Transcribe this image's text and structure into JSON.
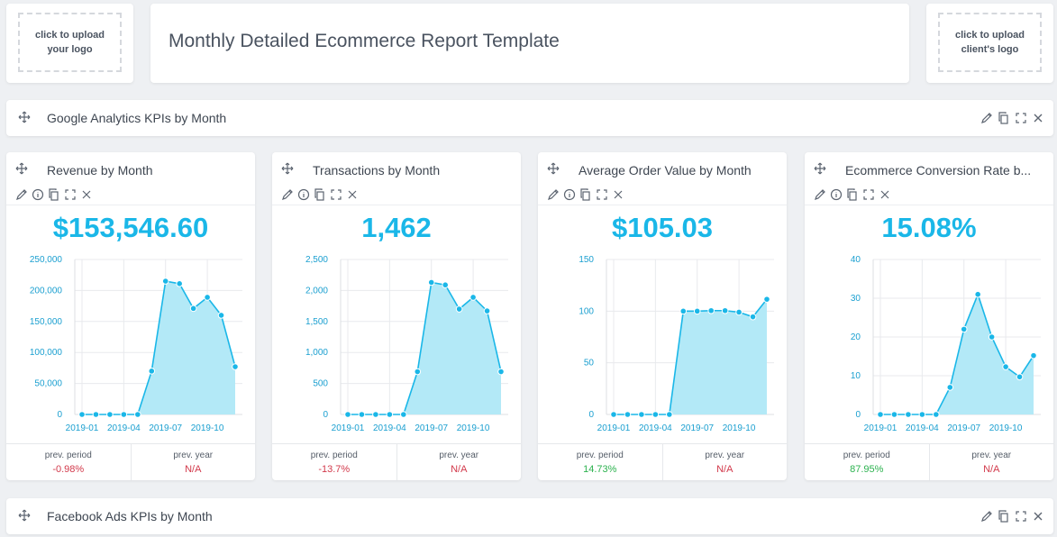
{
  "header": {
    "left_logo": "click to upload your logo",
    "title": "Monthly Detailed Ecommerce Report Template",
    "right_logo": "click to upload client's logo"
  },
  "sections": {
    "ga": {
      "title": "Google Analytics KPIs by Month"
    },
    "fb": {
      "title": "Facebook Ads KPIs by Month"
    }
  },
  "widgets": [
    {
      "title": "Revenue by Month",
      "value": "$153,546.60",
      "prev_period_label": "prev. period",
      "prev_period_value": "-0.98%",
      "prev_year_label": "prev. year",
      "prev_year_value": "N/A"
    },
    {
      "title": "Transactions by Month",
      "value": "1,462",
      "prev_period_label": "prev. period",
      "prev_period_value": "-13.7%",
      "prev_year_label": "prev. year",
      "prev_year_value": "N/A"
    },
    {
      "title": "Average Order Value by Month",
      "value": "$105.03",
      "prev_period_label": "prev. period",
      "prev_period_value": "14.73%",
      "prev_year_label": "prev. year",
      "prev_year_value": "N/A"
    },
    {
      "title": "Ecommerce Conversion Rate b...",
      "value": "15.08%",
      "prev_period_label": "prev. period",
      "prev_period_value": "87.95%",
      "prev_year_label": "prev. year",
      "prev_year_value": "N/A"
    }
  ],
  "colors": {
    "accent": "#1ab7e8",
    "area": "#b3e9f7",
    "negative": "#d2394b",
    "positive": "#2cb24f"
  },
  "chart_data": [
    {
      "type": "area",
      "x": [
        "2019-01",
        "2019-02",
        "2019-03",
        "2019-04",
        "2019-05",
        "2019-06",
        "2019-07",
        "2019-08",
        "2019-09",
        "2019-10",
        "2019-11",
        "2019-12"
      ],
      "x_ticks": [
        "2019-01",
        "2019-04",
        "2019-07",
        "2019-10"
      ],
      "values": [
        0,
        0,
        0,
        0,
        0,
        70000,
        215000,
        211000,
        171000,
        189000,
        160000,
        77000
      ],
      "y_ticks": [
        "0",
        "50,000",
        "100,000",
        "150,000",
        "200,000",
        "250,000"
      ],
      "ylim": [
        0,
        250000
      ]
    },
    {
      "type": "area",
      "x": [
        "2019-01",
        "2019-02",
        "2019-03",
        "2019-04",
        "2019-05",
        "2019-06",
        "2019-07",
        "2019-08",
        "2019-09",
        "2019-10",
        "2019-11",
        "2019-12"
      ],
      "x_ticks": [
        "2019-01",
        "2019-04",
        "2019-07",
        "2019-10"
      ],
      "values": [
        0,
        0,
        0,
        0,
        0,
        690,
        2130,
        2090,
        1700,
        1890,
        1670,
        690
      ],
      "y_ticks": [
        "0",
        "500",
        "1,000",
        "1,500",
        "2,000",
        "2,500"
      ],
      "ylim": [
        0,
        2500
      ]
    },
    {
      "type": "area",
      "x": [
        "2019-01",
        "2019-02",
        "2019-03",
        "2019-04",
        "2019-05",
        "2019-06",
        "2019-07",
        "2019-08",
        "2019-09",
        "2019-10",
        "2019-11",
        "2019-12"
      ],
      "x_ticks": [
        "2019-01",
        "2019-04",
        "2019-07",
        "2019-10"
      ],
      "values": [
        0,
        0,
        0,
        0,
        0,
        100,
        100,
        100.5,
        100.5,
        99,
        94.5,
        111.5
      ],
      "y_ticks": [
        "0",
        "50",
        "100",
        "150"
      ],
      "ylim": [
        0,
        150
      ]
    },
    {
      "type": "area",
      "x": [
        "2019-01",
        "2019-02",
        "2019-03",
        "2019-04",
        "2019-05",
        "2019-06",
        "2019-07",
        "2019-08",
        "2019-09",
        "2019-10",
        "2019-11",
        "2019-12"
      ],
      "x_ticks": [
        "2019-01",
        "2019-04",
        "2019-07",
        "2019-10"
      ],
      "values": [
        0,
        0,
        0,
        0,
        0,
        7,
        22,
        31,
        20,
        12.3,
        9.7,
        15.2
      ],
      "y_ticks": [
        "0",
        "10",
        "20",
        "30",
        "40"
      ],
      "ylim": [
        0,
        40
      ]
    }
  ]
}
